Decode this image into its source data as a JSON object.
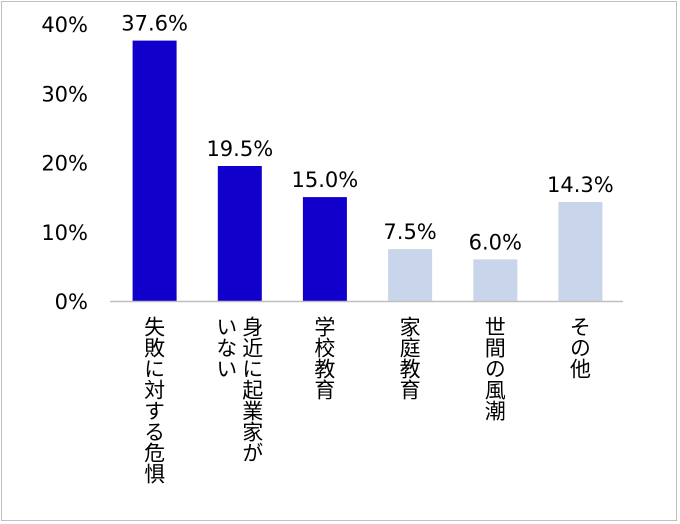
{
  "chart_data": {
    "type": "bar",
    "categories": [
      "失敗に対する危惧",
      "身近に起業家がいない",
      "学校教育",
      "家庭教育",
      "世間の風潮",
      "その他"
    ],
    "category_lines": [
      [
        "失敗に対する危惧"
      ],
      [
        "身近に起業家が",
        "いない"
      ],
      [
        "学校教育"
      ],
      [
        "家庭教育"
      ],
      [
        "世間の風潮"
      ],
      [
        "その他"
      ]
    ],
    "values": [
      37.6,
      19.5,
      15.0,
      7.5,
      6.0,
      14.3
    ],
    "data_labels": [
      "37.6%",
      "19.5%",
      "15.0%",
      "7.5%",
      "6.0%",
      "14.3%"
    ],
    "highlighted": [
      true,
      true,
      true,
      false,
      false,
      false
    ],
    "colors": {
      "highlight": "#1100cc",
      "muted": "#c9d5ea",
      "axis": "#bfbfbf"
    },
    "ylim": [
      0,
      40
    ],
    "yticks": [
      0,
      10,
      20,
      30,
      40
    ],
    "ytick_labels": [
      "0%",
      "10%",
      "20%",
      "30%",
      "40%"
    ],
    "grid": false
  }
}
